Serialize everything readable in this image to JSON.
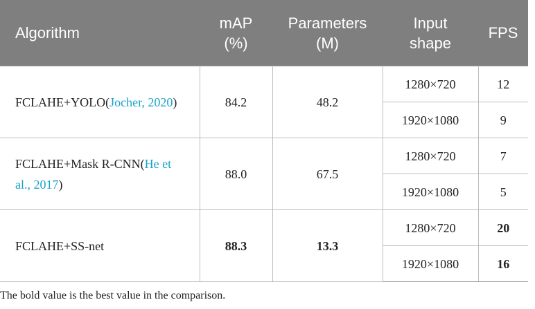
{
  "table": {
    "header": [
      [
        "Algorithm"
      ],
      [
        "mAP",
        "(%)"
      ],
      [
        "Parameters",
        "(M)"
      ],
      [
        "Input",
        "shape"
      ],
      [
        "FPS"
      ]
    ],
    "rows": [
      {
        "algorithm": {
          "prefix": "FCLAHE+YOLO(",
          "citation": "Jocher, 2020",
          "suffix": ")"
        },
        "map": "84.2",
        "parameters": "48.2",
        "inputs": [
          {
            "shape": "1280×720",
            "fps": "12"
          },
          {
            "shape": "1920×1080",
            "fps": "9"
          }
        ]
      },
      {
        "algorithm": {
          "prefix": "FCLAHE+Mask R-CNN(",
          "citation": "He et al., 2017",
          "suffix": ")"
        },
        "map": "88.0",
        "parameters": "67.5",
        "inputs": [
          {
            "shape": "1280×720",
            "fps": "7"
          },
          {
            "shape": "1920×1080",
            "fps": "5"
          }
        ]
      },
      {
        "algorithm": {
          "prefix": "FCLAHE+SS-net"
        },
        "map": "88.3",
        "parameters": "13.3",
        "bold": true,
        "inputs": [
          {
            "shape": "1280×720",
            "fps": "20"
          },
          {
            "shape": "1920×1080",
            "fps": "16"
          }
        ]
      }
    ],
    "footnote": "The bold value is the best value in the comparison."
  }
}
